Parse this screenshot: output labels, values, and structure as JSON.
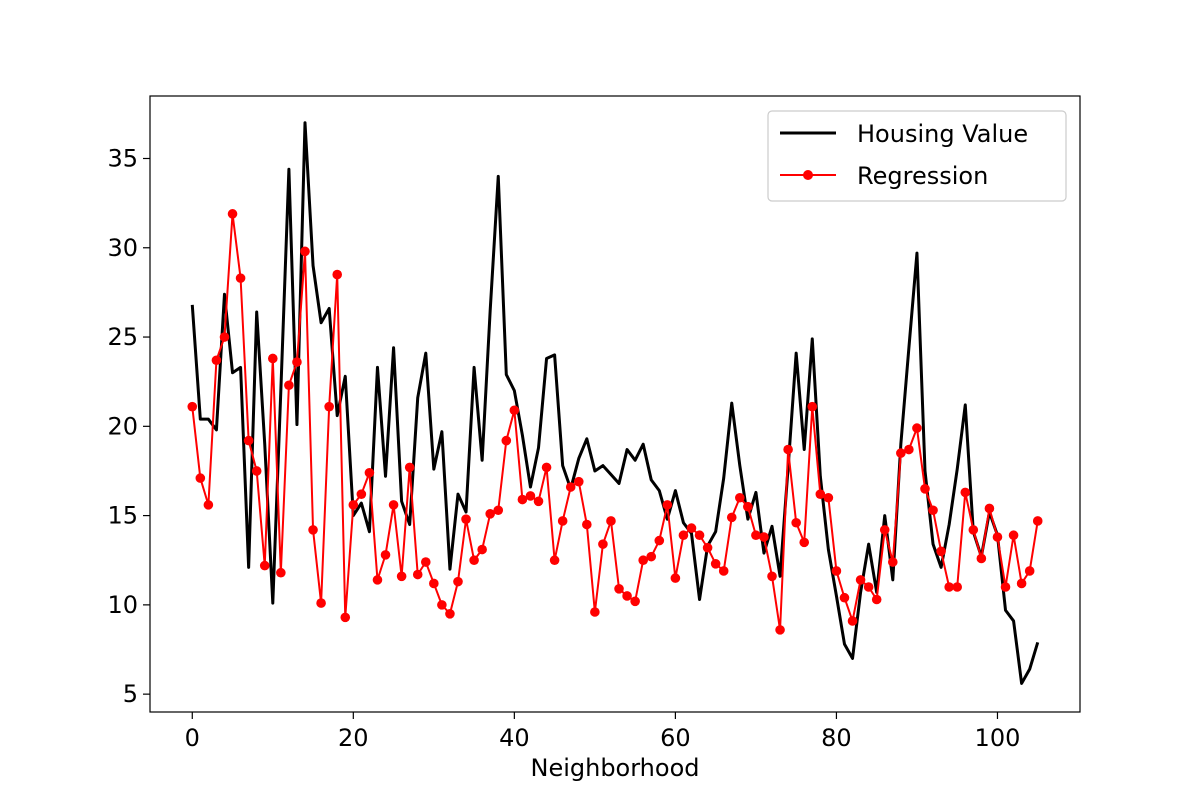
{
  "chart_data": {
    "type": "line",
    "title": "",
    "xlabel": "Neighborhood",
    "ylabel": "",
    "xlim": [
      -5.25,
      110.25
    ],
    "ylim": [
      4.0,
      38.5
    ],
    "xticks": [
      0,
      20,
      40,
      60,
      80,
      100
    ],
    "yticks": [
      5,
      10,
      15,
      20,
      25,
      30,
      35
    ],
    "grid": false,
    "legend_position": "top-right",
    "series": [
      {
        "name": "Housing Value",
        "color": "#000000",
        "marker": "none",
        "x": [
          0,
          1,
          2,
          3,
          4,
          5,
          6,
          7,
          8,
          9,
          10,
          11,
          12,
          13,
          14,
          15,
          16,
          17,
          18,
          19,
          20,
          21,
          22,
          23,
          24,
          25,
          26,
          27,
          28,
          29,
          30,
          31,
          32,
          33,
          34,
          35,
          36,
          37,
          38,
          39,
          40,
          41,
          42,
          43,
          44,
          45,
          46,
          47,
          48,
          49,
          50,
          51,
          52,
          53,
          54,
          55,
          56,
          57,
          58,
          59,
          60,
          61,
          62,
          63,
          64,
          65,
          66,
          67,
          68,
          69,
          70,
          71,
          72,
          73,
          74,
          75,
          76,
          77,
          78,
          79,
          80,
          81,
          82,
          83,
          84,
          85,
          86,
          87,
          88,
          89,
          90,
          91,
          92,
          93,
          94,
          95,
          96,
          97,
          98,
          99,
          100,
          101,
          102,
          103,
          104,
          105
        ],
        "values": [
          26.8,
          20.4,
          20.4,
          19.8,
          27.4,
          23.0,
          23.3,
          12.1,
          26.4,
          19.0,
          10.1,
          22.0,
          34.4,
          20.1,
          37.0,
          29.0,
          25.8,
          26.6,
          20.6,
          22.8,
          15.0,
          15.7,
          14.1,
          23.3,
          17.2,
          24.4,
          15.8,
          14.5,
          21.6,
          24.1,
          17.6,
          19.7,
          12.0,
          16.2,
          15.2,
          23.3,
          18.1,
          26.5,
          34.0,
          22.9,
          22.0,
          19.5,
          16.6,
          18.8,
          23.8,
          24.0,
          17.8,
          16.5,
          18.2,
          19.3,
          17.5,
          17.8,
          17.3,
          16.8,
          18.7,
          18.1,
          19.0,
          17.0,
          16.4,
          14.8,
          16.4,
          14.6,
          14.0,
          10.3,
          13.3,
          14.1,
          17.1,
          21.3,
          17.8,
          14.8,
          16.3,
          12.9,
          14.4,
          11.6,
          17.7,
          24.1,
          18.7,
          24.9,
          17.2,
          13.1,
          10.5,
          7.8,
          7.0,
          10.7,
          13.4,
          10.7,
          15.0,
          11.4,
          19.0,
          24.4,
          29.7,
          17.5,
          13.4,
          12.1,
          14.5,
          17.6,
          21.2,
          14.1,
          12.7,
          15.2,
          13.9,
          9.7,
          9.1,
          5.6,
          6.4,
          7.9
        ]
      },
      {
        "name": "Regression",
        "color": "#ff0000",
        "marker": "circle",
        "x": [
          0,
          1,
          2,
          3,
          4,
          5,
          6,
          7,
          8,
          9,
          10,
          11,
          12,
          13,
          14,
          15,
          16,
          17,
          18,
          19,
          20,
          21,
          22,
          23,
          24,
          25,
          26,
          27,
          28,
          29,
          30,
          31,
          32,
          33,
          34,
          35,
          36,
          37,
          38,
          39,
          40,
          41,
          42,
          43,
          44,
          45,
          46,
          47,
          48,
          49,
          50,
          51,
          52,
          53,
          54,
          55,
          56,
          57,
          58,
          59,
          60,
          61,
          62,
          63,
          64,
          65,
          66,
          67,
          68,
          69,
          70,
          71,
          72,
          73,
          74,
          75,
          76,
          77,
          78,
          79,
          80,
          81,
          82,
          83,
          84,
          85,
          86,
          87,
          88,
          89,
          90,
          91,
          92,
          93,
          94,
          95,
          96,
          97,
          98,
          99,
          100,
          101,
          102,
          103,
          104,
          105
        ],
        "values": [
          21.1,
          17.1,
          15.6,
          23.7,
          25.0,
          31.9,
          28.3,
          19.2,
          17.5,
          12.2,
          23.8,
          11.8,
          22.3,
          23.6,
          29.8,
          14.2,
          10.1,
          21.1,
          28.5,
          9.3,
          15.6,
          16.2,
          17.4,
          11.4,
          12.8,
          15.6,
          11.6,
          17.7,
          11.7,
          12.4,
          11.2,
          10.0,
          9.5,
          11.3,
          14.8,
          12.5,
          13.1,
          15.1,
          15.3,
          19.2,
          20.9,
          15.9,
          16.1,
          15.8,
          17.7,
          12.5,
          14.7,
          16.6,
          16.9,
          14.5,
          9.6,
          13.4,
          14.7,
          10.9,
          10.5,
          10.2,
          12.5,
          12.7,
          13.6,
          15.6,
          11.5,
          13.9,
          14.3,
          13.9,
          13.2,
          12.3,
          11.9,
          14.9,
          16.0,
          15.5,
          13.9,
          13.8,
          11.6,
          8.6,
          18.7,
          14.6,
          13.5,
          21.1,
          16.2,
          16.0,
          11.9,
          10.4,
          9.1,
          11.4,
          11.0,
          10.3,
          14.2,
          12.4,
          18.5,
          18.7,
          19.9,
          16.5,
          15.3,
          13.0,
          11.0,
          11.0,
          16.3,
          14.2,
          12.6,
          15.4,
          13.8,
          11.0,
          13.9,
          11.2,
          11.9,
          14.7
        ]
      }
    ]
  }
}
